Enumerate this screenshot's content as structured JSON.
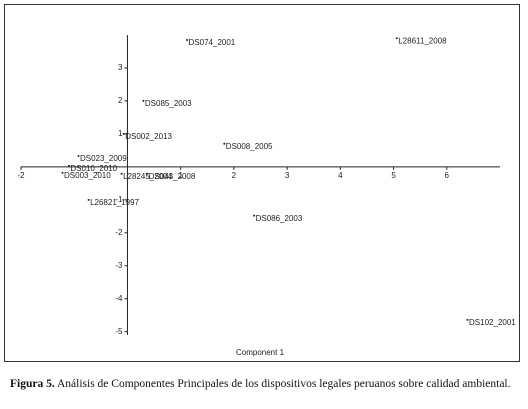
{
  "chart_data": {
    "type": "scatter",
    "xlabel": "Component 1",
    "labels": [
      "DS074_2001",
      "L28611_2008",
      "DS085_2003",
      "DS002_2013",
      "DS008_2005",
      "DS023_2009",
      "DS010_2010",
      "DS003_2010",
      "L28245_2004",
      "DS043_2008",
      "L26821_1997",
      "DS086_2003",
      "DS102_2001"
    ],
    "x": [
      1.12,
      5.06,
      0.3,
      -0.07,
      1.82,
      -0.92,
      -1.1,
      -1.22,
      -0.11,
      0.37,
      -0.73,
      2.38,
      6.39
    ],
    "y": [
      3.85,
      3.9,
      2.0,
      1.0,
      0.7,
      0.33,
      0.03,
      -0.18,
      -0.21,
      -0.21,
      -1.0,
      -1.48,
      -4.64
    ],
    "xlim": [
      -2,
      7
    ],
    "ylim": [
      -5.1,
      4
    ],
    "xticks": [
      -2,
      1,
      2,
      3,
      4,
      5,
      6
    ],
    "yticks": [
      3,
      2,
      1,
      -1,
      -2,
      -3,
      -4,
      -5
    ]
  },
  "caption": {
    "label": "Figura 5.",
    "text": "Análisis de Componentes Principales de los dispositivos legales peruanos sobre calidad ambiental."
  }
}
